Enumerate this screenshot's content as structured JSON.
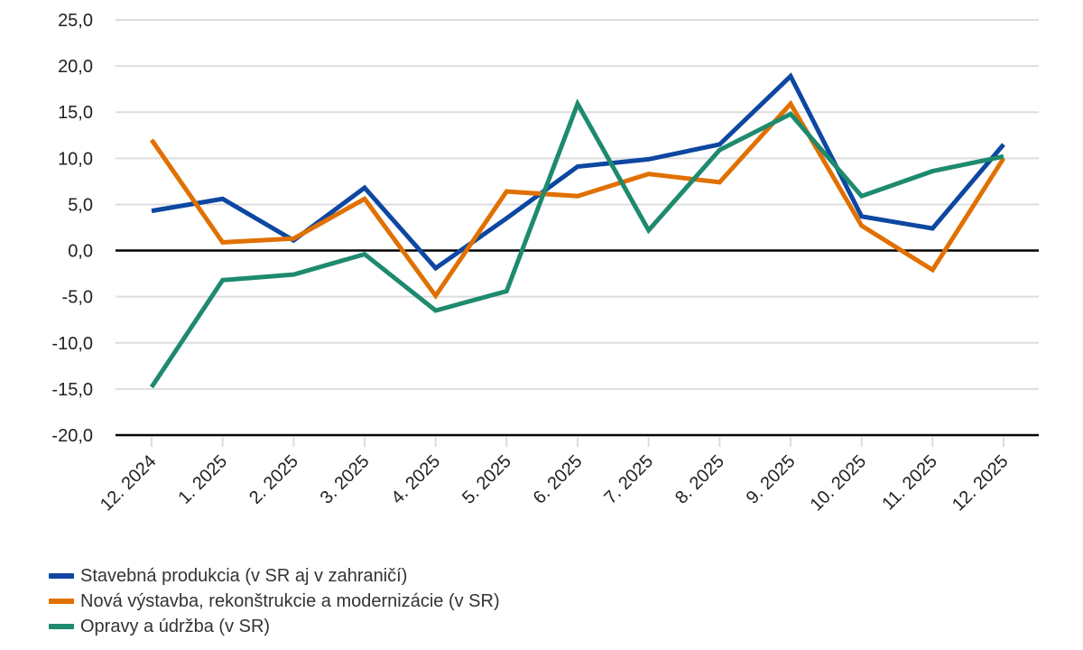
{
  "chart_data": {
    "type": "line",
    "title": "",
    "xlabel": "",
    "ylabel": "",
    "ylim": [
      -20,
      25
    ],
    "yticks": [
      25,
      20,
      15,
      10,
      5,
      0,
      -5,
      -10,
      -15,
      -20
    ],
    "ytick_labels": [
      "25,0",
      "20,0",
      "15,0",
      "10,0",
      "5,0",
      "0,0",
      "-5,0",
      "-10,0",
      "-15,0",
      "-20,0"
    ],
    "grid": true,
    "legend_position": "bottom-left",
    "categories": [
      "12. 2024",
      "1. 2025",
      "2. 2025",
      "3. 2025",
      "4. 2025",
      "5. 2025",
      "6. 2025",
      "7. 2025",
      "8. 2025",
      "9. 2025",
      "10. 2025",
      "11. 2025",
      "12. 2025"
    ],
    "series": [
      {
        "name": "Stavebná produkcia (v SR aj v zahraničí)",
        "color": "#0d47a1",
        "values": [
          4.3,
          5.6,
          1.1,
          6.8,
          -1.9,
          3.5,
          9.1,
          9.9,
          11.5,
          18.9,
          3.7,
          2.4,
          11.5
        ]
      },
      {
        "name": "Nová výstavba, rekonštrukcie a modernizácie (v SR)",
        "color": "#e07000",
        "values": [
          12.0,
          0.9,
          1.3,
          5.6,
          -4.9,
          6.4,
          5.9,
          8.3,
          7.4,
          15.9,
          2.7,
          -2.1,
          10.0
        ]
      },
      {
        "name": "Opravy a údržba (v SR)",
        "color": "#1e8a6e",
        "values": [
          -14.8,
          -3.2,
          -2.6,
          -0.4,
          -6.5,
          -4.4,
          15.9,
          2.2,
          10.9,
          14.8,
          5.9,
          8.6,
          10.2
        ]
      }
    ]
  }
}
